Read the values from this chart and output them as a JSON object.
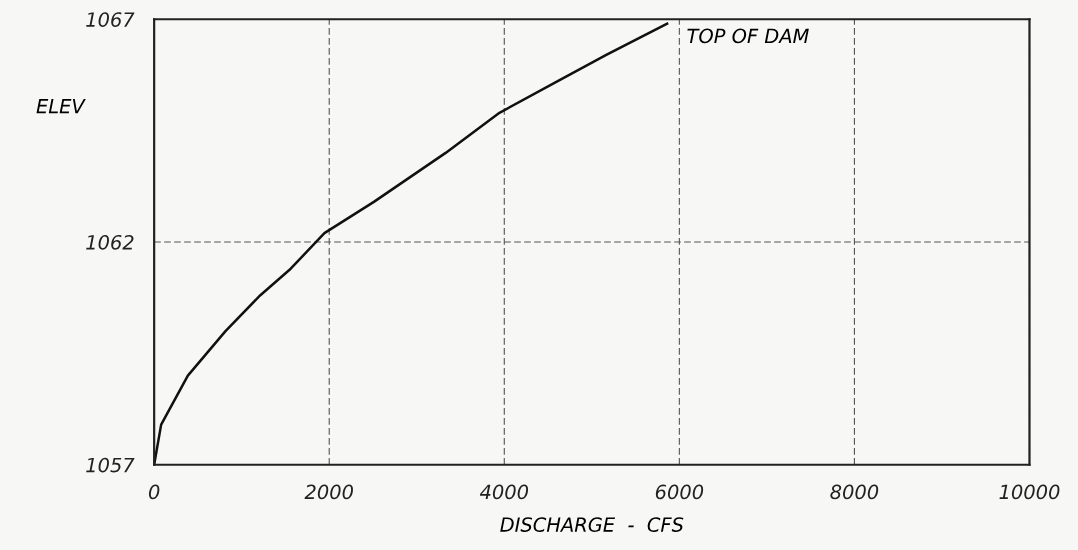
{
  "chart_data": {
    "type": "line",
    "xlabel": "DISCHARGE  -  CFS",
    "ylabel": "ELEV",
    "x": [
      0,
      80,
      385,
      815,
      1210,
      1560,
      1945,
      2510,
      3330,
      3945,
      4600,
      5165,
      5860
    ],
    "series": [
      {
        "color": "#111111",
        "values": [
          1057.0,
          1057.9,
          1059.0,
          1060.0,
          1060.8,
          1061.4,
          1062.2,
          1062.9,
          1064.0,
          1064.9,
          1065.6,
          1066.2,
          1066.9
        ]
      }
    ],
    "xlim": [
      0,
      10000
    ],
    "xticks": [
      0,
      2000,
      4000,
      6000,
      8000,
      10000
    ],
    "ylim": [
      1057,
      1067
    ],
    "yticks": [
      1057,
      1062,
      1067
    ],
    "grid": true,
    "marker": "none",
    "line_style": "solid",
    "annotations": [
      {
        "text": "TOP OF DAM",
        "x": 5860,
        "y": 1066.9
      }
    ]
  }
}
